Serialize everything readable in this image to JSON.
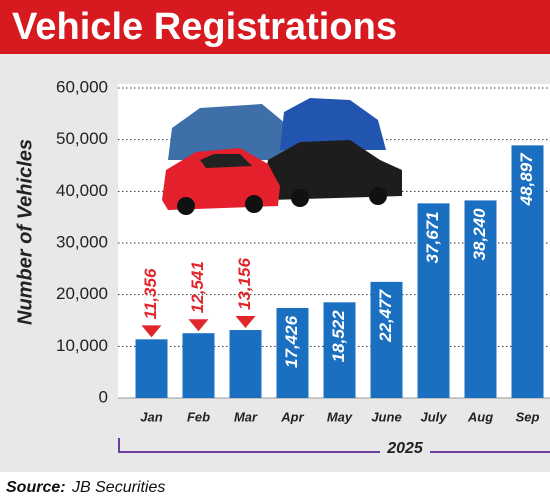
{
  "chart_data": {
    "type": "bar",
    "title": "Vehicle Registrations",
    "y_label": "Number of Vehicles",
    "categories": [
      "Jan",
      "Feb",
      "Mar",
      "Apr",
      "May",
      "June",
      "July",
      "Aug",
      "Sep"
    ],
    "values": [
      11356,
      12541,
      13156,
      17426,
      18522,
      22477,
      37671,
      38240,
      48897
    ],
    "value_labels": [
      "11,356",
      "12,541",
      "13,156",
      "17,426",
      "18,522",
      "22,477",
      "37,671",
      "38,240",
      "48,897"
    ],
    "value_label_colors": [
      "#e0262b",
      "#e0262b",
      "#e0262b",
      "#ffffff",
      "#ffffff",
      "#ffffff",
      "#ffffff",
      "#ffffff",
      "#ffffff"
    ],
    "color": "#1a6fc1",
    "ylim": [
      0,
      60000
    ],
    "yticks": [
      0,
      {
        "value": 10000,
        "label": "10,000"
      },
      {
        "value": 20000,
        "label": "20,000"
      },
      {
        "value": 30000,
        "label": "30,000"
      },
      {
        "value": 40000,
        "label": "40,000"
      },
      {
        "value": 50000,
        "label": "50,000"
      },
      {
        "value": 60000,
        "label": "60,000"
      }
    ],
    "grid": true,
    "x_group_label": "2025",
    "source_label": "Source:",
    "source": "JB Securities"
  }
}
